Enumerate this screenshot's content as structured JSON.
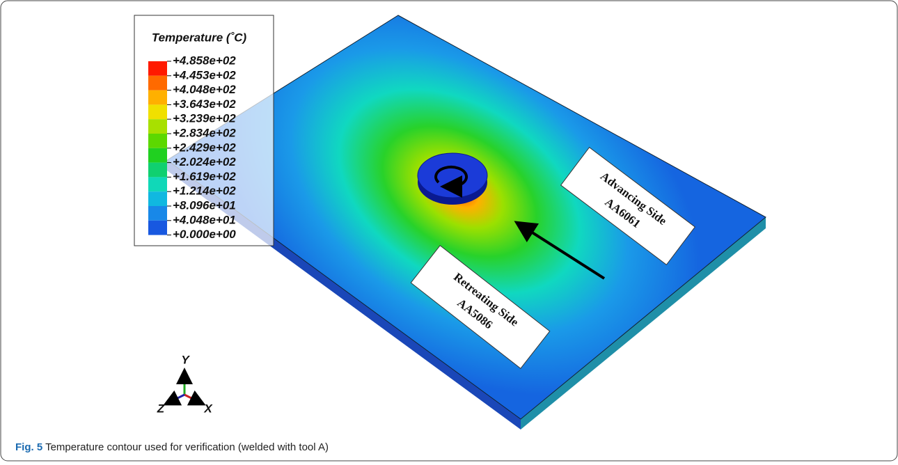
{
  "figure": {
    "legend": {
      "title": "Temperature (˚C)",
      "labels": [
        "+4.858e+02",
        "+4.453e+02",
        "+4.048e+02",
        "+3.643e+02",
        "+3.239e+02",
        "+2.834e+02",
        "+2.429e+02",
        "+2.024e+02",
        "+1.619e+02",
        "+1.214e+02",
        "+8.096e+01",
        "+4.048e+01",
        "+0.000e+00"
      ]
    },
    "annotations": [
      {
        "line1": "Advancing Side",
        "line2": "AA6061"
      },
      {
        "line1": "Retreating Side",
        "line2": "AA5086"
      }
    ],
    "axes": {
      "y": "Y",
      "z": "Z",
      "x": "X"
    },
    "caption": {
      "label": "Fig. 5",
      "text": "Temperature contour used for verification (welded with tool A)"
    }
  }
}
